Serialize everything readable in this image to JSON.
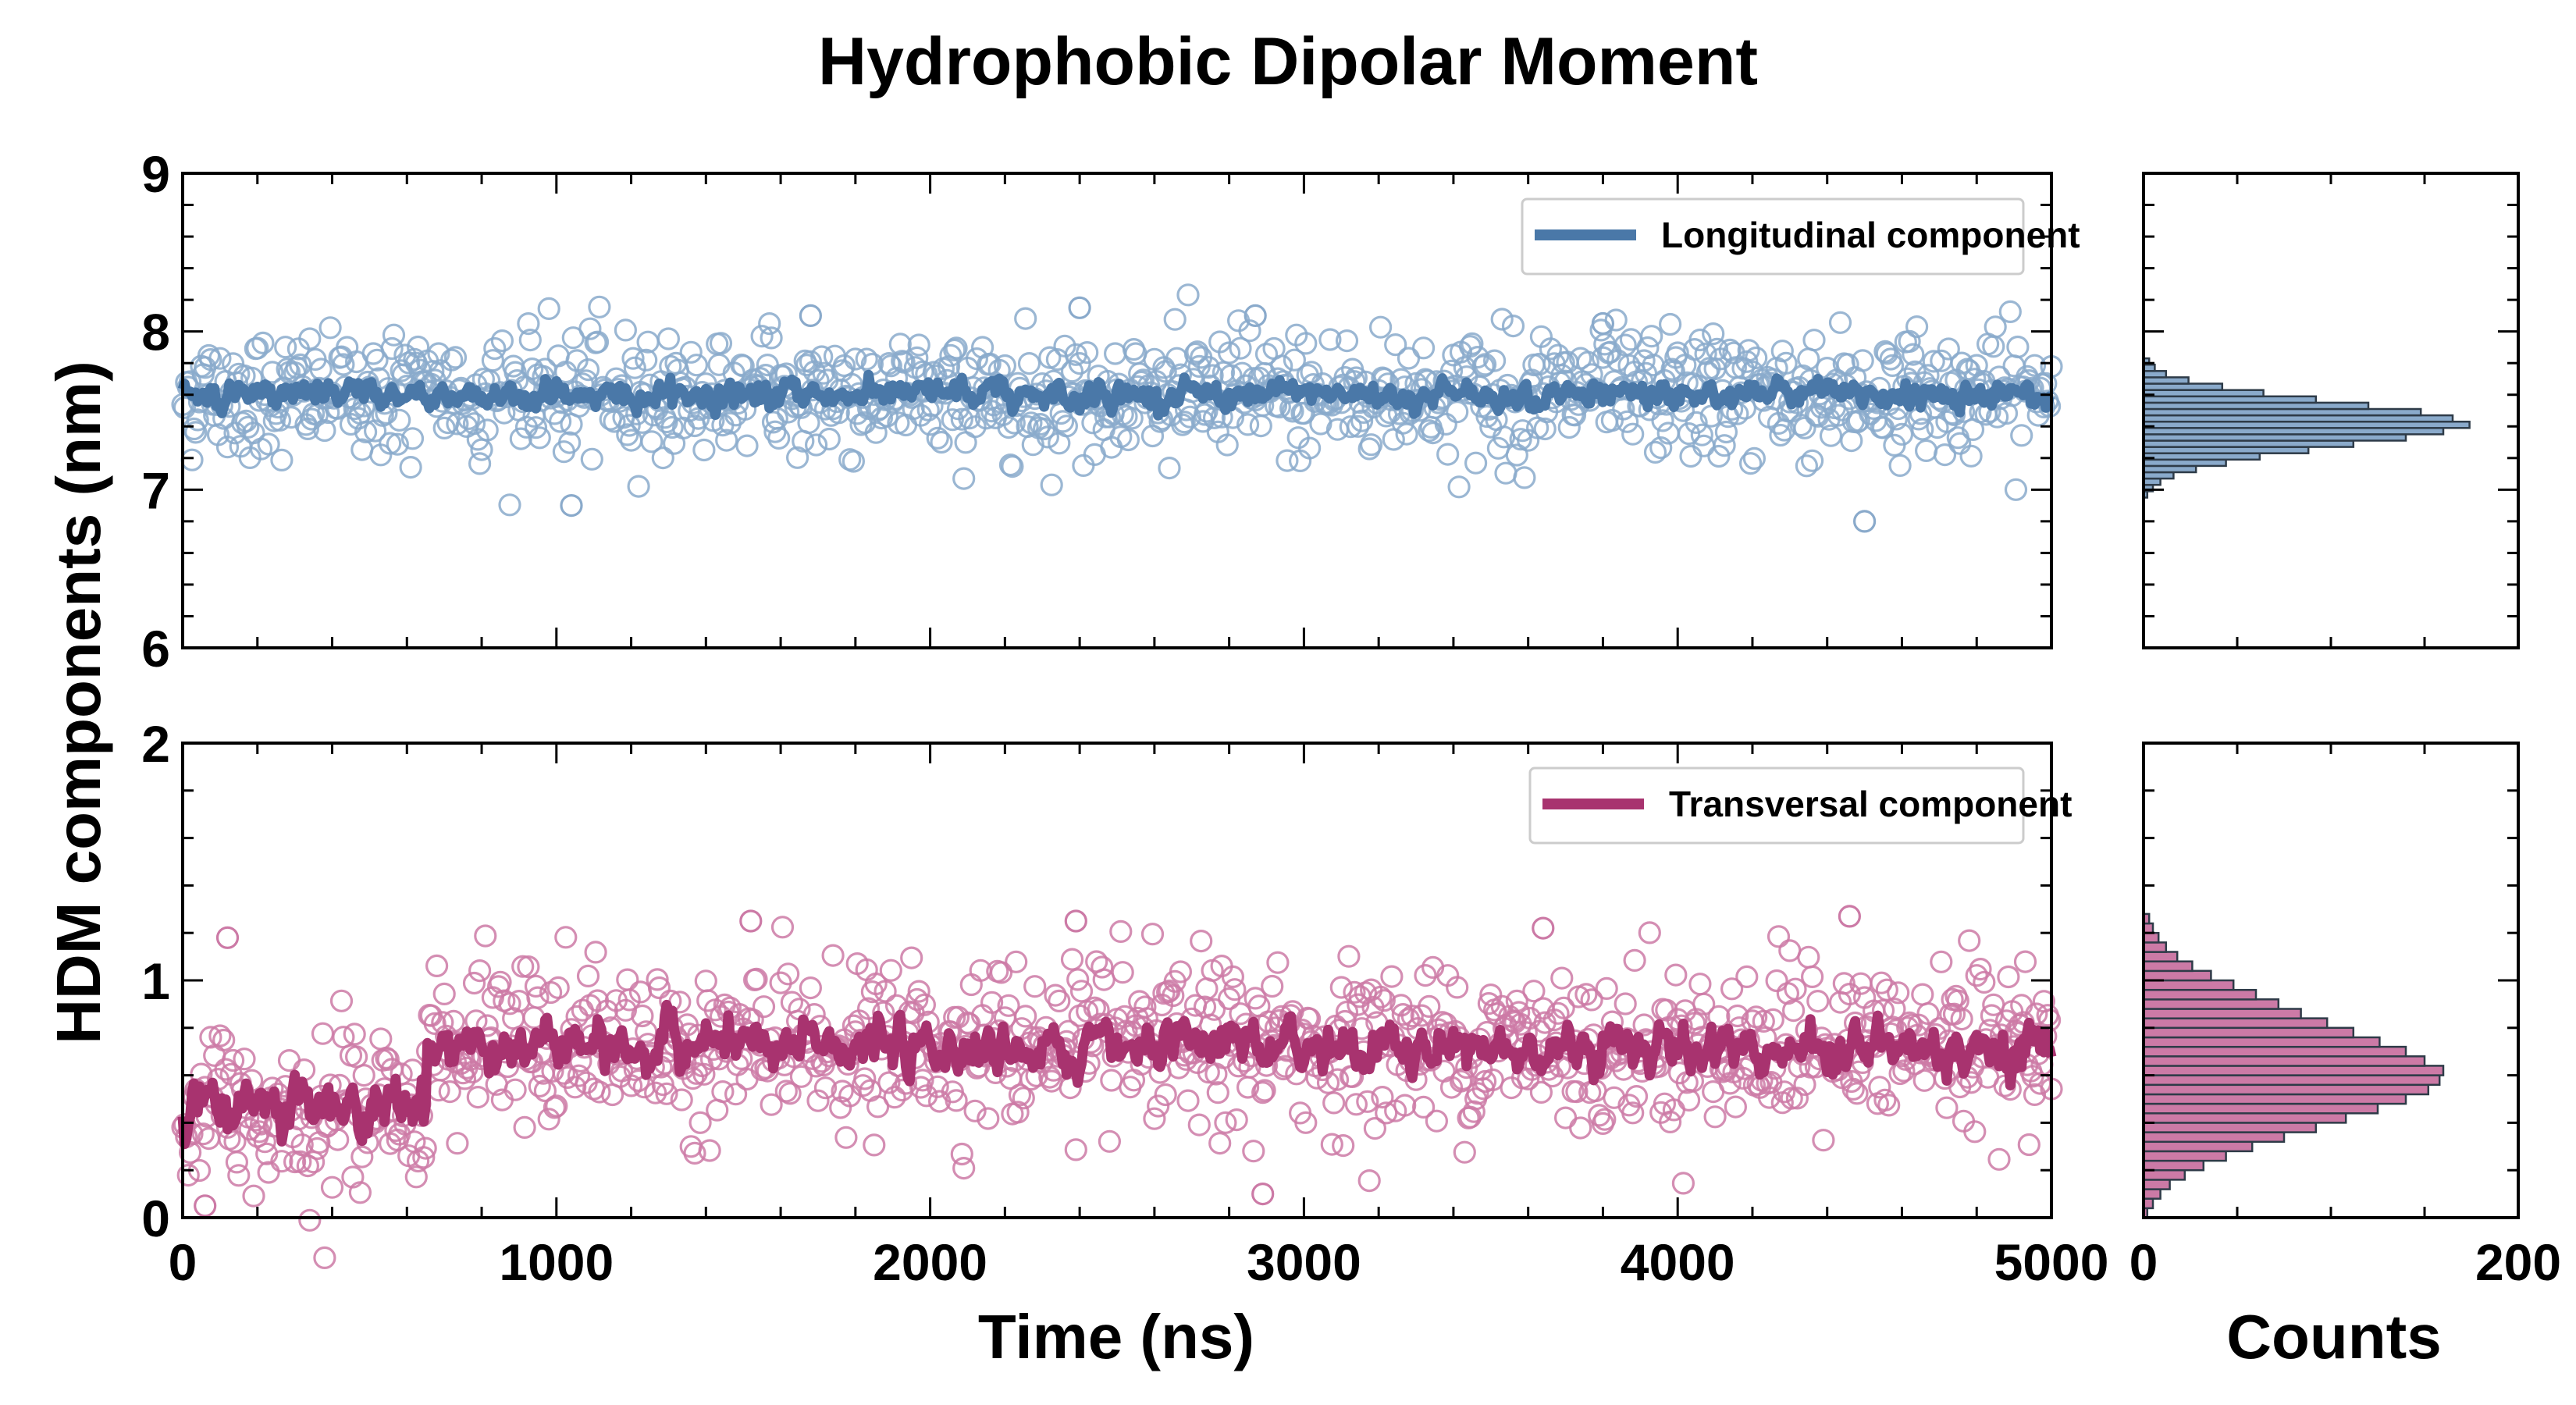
{
  "chart_data": {
    "type": "scatter",
    "title": "Hydrophobic Dipolar Moment",
    "ylabel": "HDM components (nm)",
    "xlabel": "Time (ns)",
    "hist_xlabel": "Counts",
    "grid": false,
    "x_ticks": [
      "0",
      "1000",
      "2000",
      "3000",
      "4000",
      "5000"
    ],
    "xlim": [
      0,
      5000
    ],
    "hist_ticks": [
      "0",
      "200"
    ],
    "hist_xlim": [
      0,
      200
    ],
    "colors": {
      "longitudinal": "#4A78A8",
      "longitudinal_points": "#8AAACB",
      "transversal": "#A8336F",
      "transversal_points": "#CC7AA6",
      "hist_edge": "#2E3B48"
    },
    "panels": [
      {
        "series_name": "Longitudinal component",
        "legend_position": "top-right",
        "ylim": [
          6,
          9
        ],
        "y_ticks": [
          "6",
          "7",
          "8",
          "9"
        ],
        "mean": 7.6,
        "scatter_sd": 0.2,
        "smooth_sd": 0.05,
        "segments": [
          [
            0,
            5000,
            7.6
          ]
        ],
        "n_points": 1000,
        "outliers": [
          [
            1040,
            6.9
          ],
          [
            4500,
            6.8
          ],
          [
            2400,
            8.15
          ],
          [
            1680,
            8.1
          ],
          [
            2870,
            8.1
          ],
          [
            3800,
            8.05
          ]
        ],
        "hist": {
          "bin_start": 6.95,
          "bin_width": 0.04,
          "counts": [
            2,
            5,
            9,
            16,
            28,
            44,
            62,
            88,
            112,
            140,
            160,
            174,
            165,
            148,
            120,
            92,
            64,
            42,
            24,
            12,
            6,
            3
          ]
        }
      },
      {
        "series_name": "Transversal component",
        "legend_position": "top-right",
        "ylim": [
          0,
          2
        ],
        "y_ticks": [
          "0",
          "1",
          "2"
        ],
        "mean": 0.72,
        "scatter_sd": 0.17,
        "smooth_sd": 0.06,
        "segments": [
          [
            0,
            650,
            0.47
          ],
          [
            650,
            5000,
            0.72
          ]
        ],
        "n_points": 1000,
        "outliers": [
          [
            1520,
            1.25
          ],
          [
            4460,
            1.27
          ],
          [
            2390,
            1.25
          ],
          [
            3640,
            1.22
          ],
          [
            2890,
            0.1
          ],
          [
            60,
            0.05
          ],
          [
            120,
            1.18
          ]
        ],
        "hist": {
          "bin_start": 0.0,
          "bin_width": 0.04,
          "counts": [
            2,
            5,
            9,
            14,
            22,
            32,
            44,
            58,
            75,
            92,
            108,
            125,
            140,
            152,
            158,
            160,
            150,
            140,
            126,
            112,
            98,
            84,
            72,
            60,
            48,
            36,
            26,
            18,
            12,
            8,
            5,
            3
          ]
        }
      }
    ]
  }
}
